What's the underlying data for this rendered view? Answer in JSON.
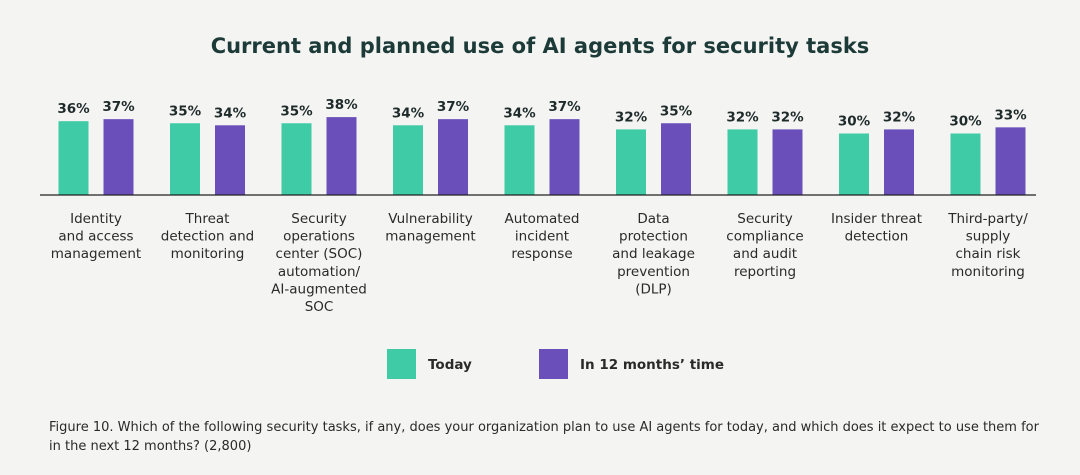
{
  "chart_data": {
    "type": "bar",
    "title": "Current and planned use of AI agents for security tasks",
    "categories": [
      [
        "Identity",
        "and access",
        "management"
      ],
      [
        "Threat",
        "detection and",
        "monitoring"
      ],
      [
        "Security",
        "operations",
        "center (SOC)",
        "automation/",
        "AI-augmented",
        "SOC"
      ],
      [
        "Vulnerability",
        "management"
      ],
      [
        "Automated",
        "incident",
        "response"
      ],
      [
        "Data",
        "protection",
        "and leakage",
        "prevention",
        "(DLP)"
      ],
      [
        "Security",
        "compliance",
        "and audit",
        "reporting"
      ],
      [
        "Insider threat",
        "detection"
      ],
      [
        "Third-party/",
        "supply",
        "chain risk",
        "monitoring"
      ]
    ],
    "series": [
      {
        "name": "Today",
        "color": "#3ecba5",
        "values": [
          36,
          35,
          35,
          34,
          34,
          32,
          32,
          30,
          30
        ],
        "value_labels": [
          "36%",
          "35%",
          "35%",
          "34%",
          "34%",
          "32%",
          "32%",
          "30%",
          "30%"
        ]
      },
      {
        "name": "In 12 months’ time",
        "color": "#6a4fbb",
        "values": [
          37,
          34,
          38,
          37,
          37,
          35,
          32,
          32,
          33
        ],
        "value_labels": [
          "37%",
          "34%",
          "38%",
          "37%",
          "37%",
          "35%",
          "32%",
          "32%",
          "33%"
        ]
      }
    ],
    "ylim": [
      0,
      40
    ],
    "caption": "Figure 10. Which of the following security tasks, if any, does your organization plan to use AI agents for today, and which does it expect to use them for in the next 12 months? (2,800)"
  }
}
